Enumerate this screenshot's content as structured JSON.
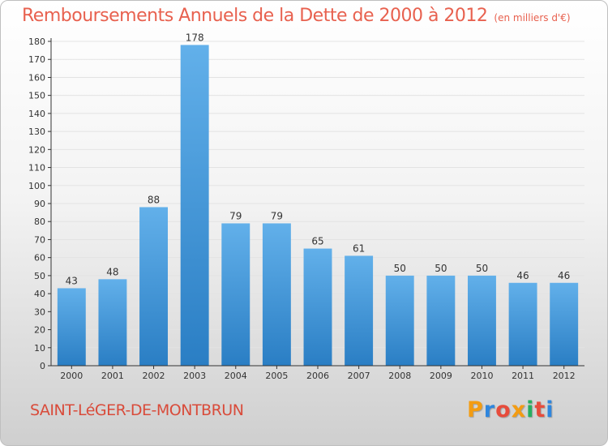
{
  "title": "Remboursements Annuels de la Dette de 2000 à 2012",
  "unit_note": "(en milliers d'€)",
  "town": "SAINT-LéGER-DE-MONTBRUN",
  "logo": {
    "text": "Proxiti",
    "letter_colors": [
      "#f39c12",
      "#2e86de",
      "#e74c3c",
      "#f39c12",
      "#27ae60",
      "#e74c3c",
      "#2e86de"
    ]
  },
  "colors": {
    "title": "#e8614f",
    "bar_top": "#62b0ea",
    "bar_bottom": "#2a7ec4",
    "grid": "#e3e3e3",
    "axis": "#333333"
  },
  "chart_data": {
    "type": "bar",
    "title": "Remboursements Annuels de la Dette de 2000 à 2012",
    "categories": [
      "2000",
      "2001",
      "2002",
      "2003",
      "2004",
      "2005",
      "2006",
      "2007",
      "2008",
      "2009",
      "2010",
      "2011",
      "2012"
    ],
    "values": [
      43,
      48,
      88,
      178,
      79,
      79,
      65,
      61,
      50,
      50,
      50,
      46,
      46
    ],
    "ylim": [
      0,
      180
    ],
    "yticks": [
      0,
      10,
      20,
      30,
      40,
      50,
      60,
      70,
      80,
      90,
      100,
      110,
      120,
      130,
      140,
      150,
      160,
      170,
      180
    ],
    "grid": true,
    "legend": "none"
  }
}
